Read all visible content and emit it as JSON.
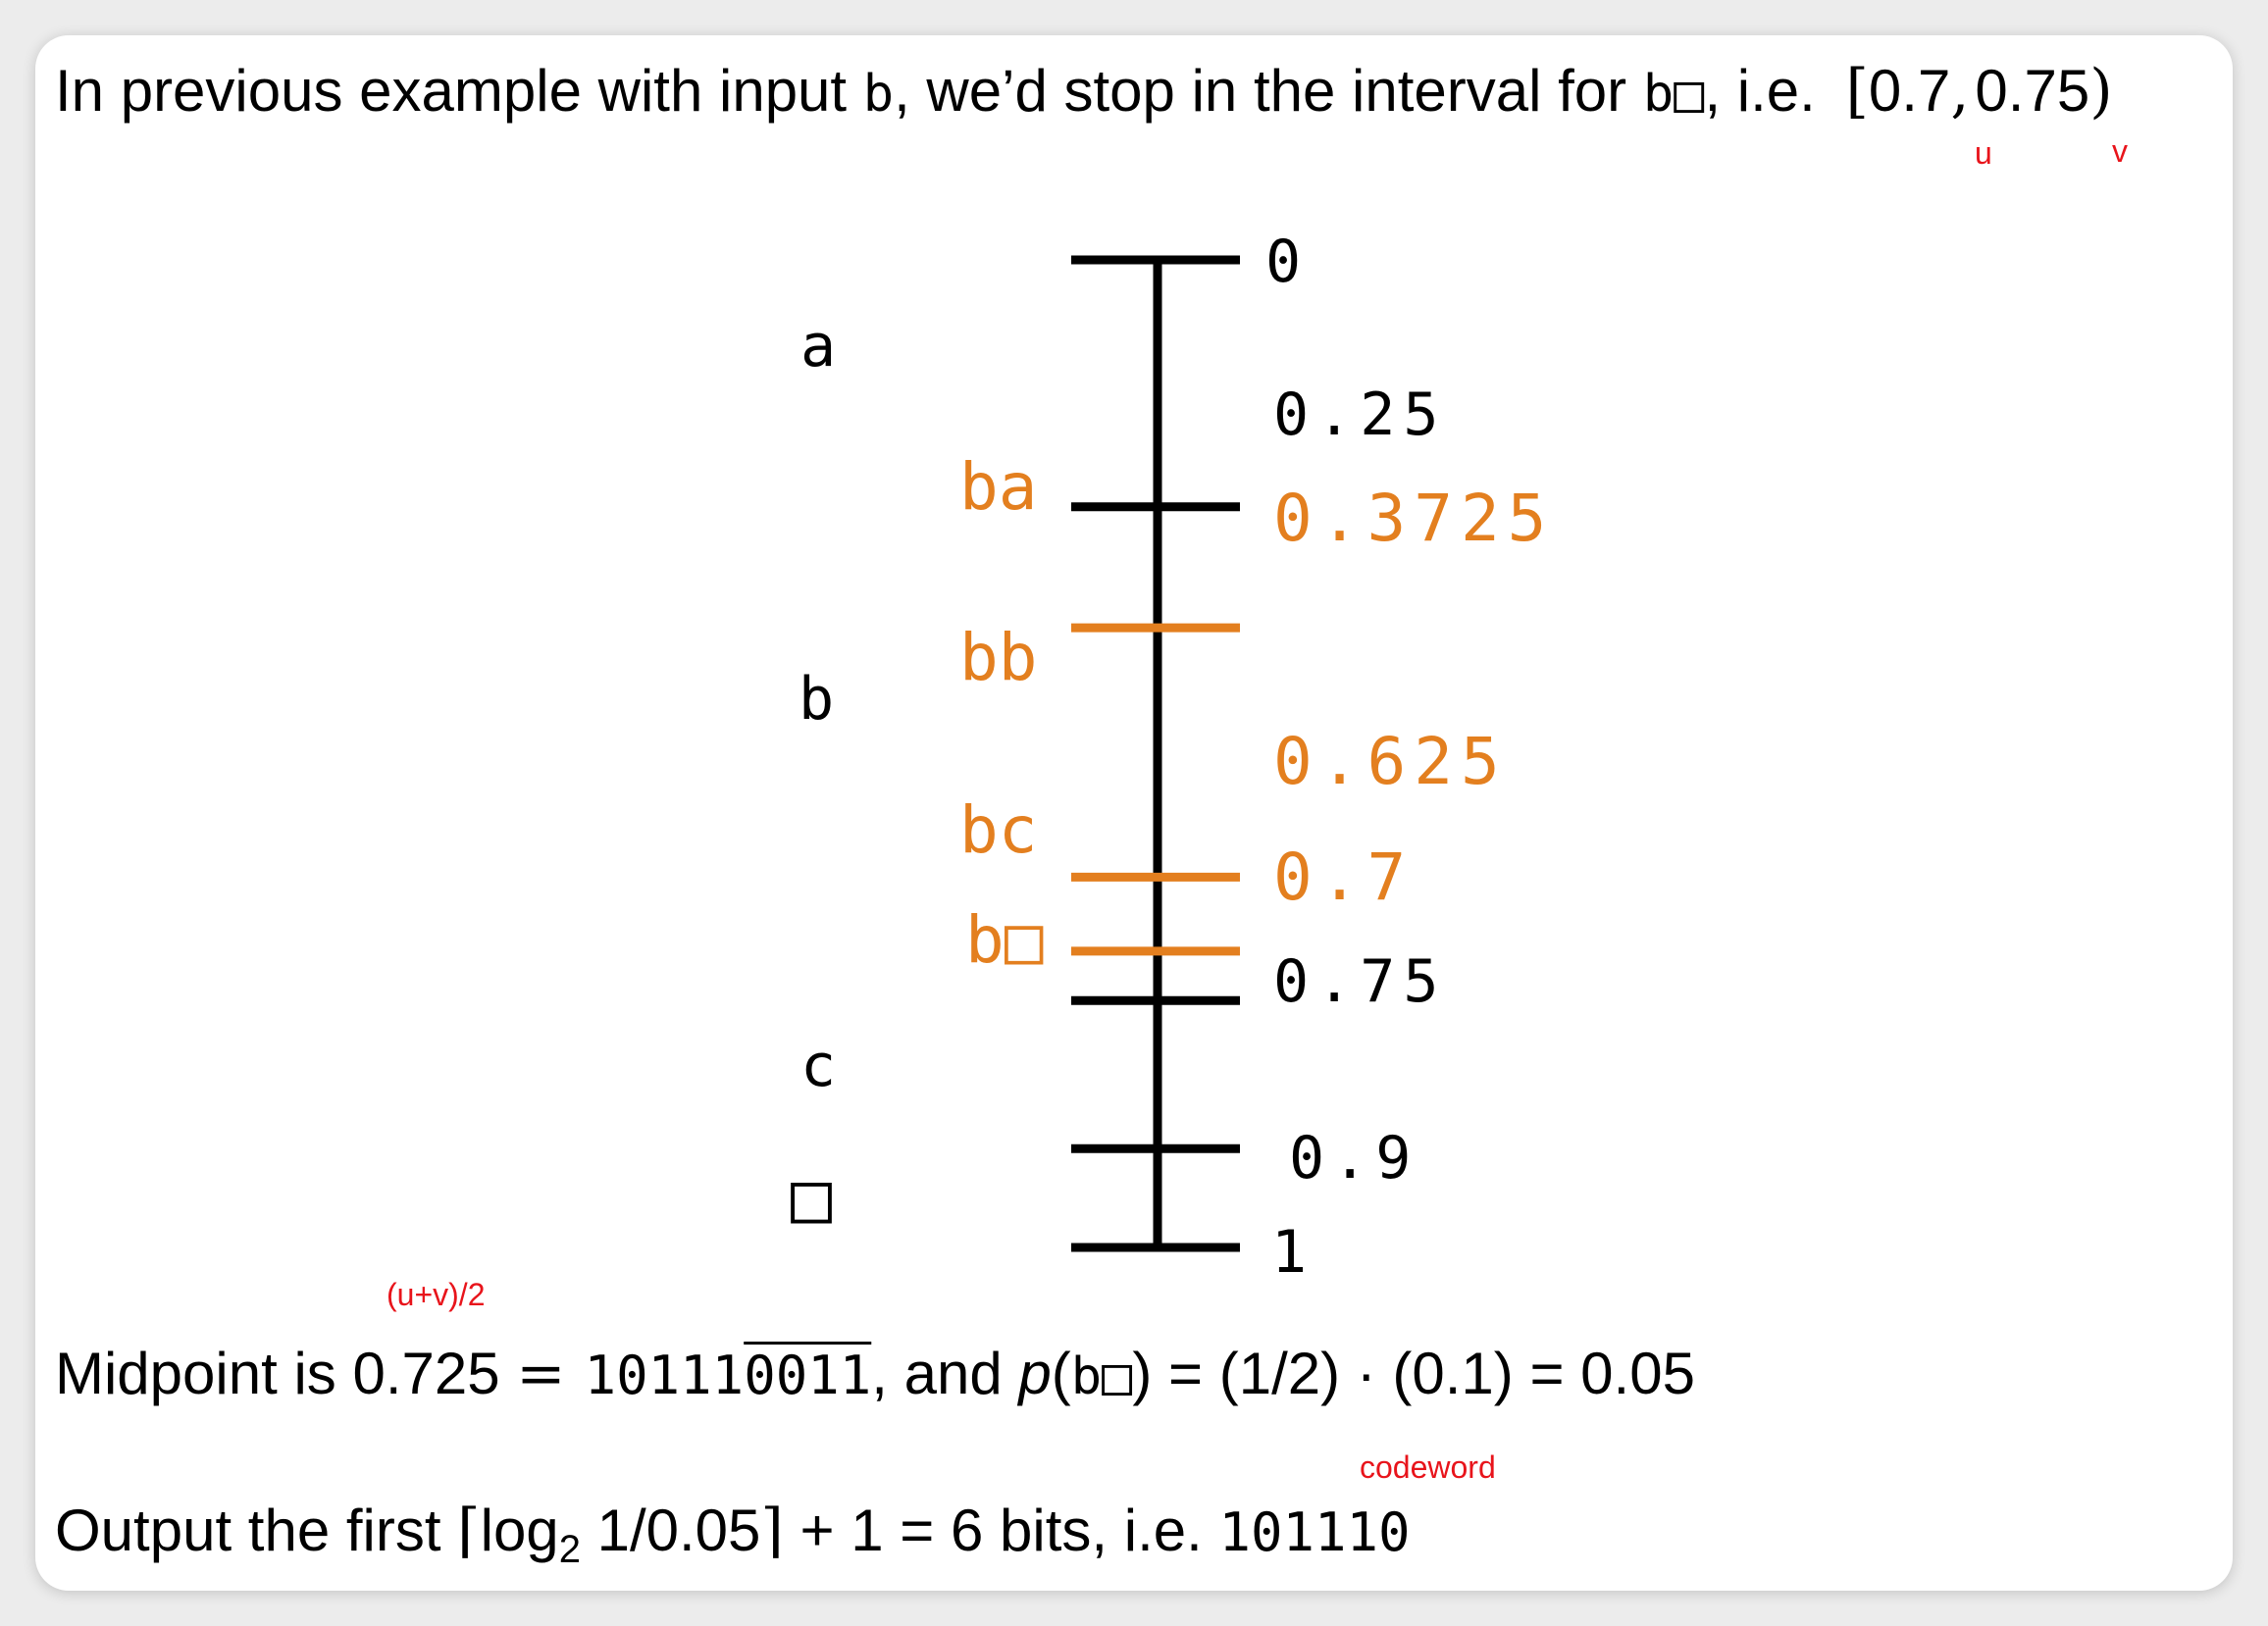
{
  "header": {
    "prefix": "In previous example with input ",
    "input_symbol": "b",
    "mid": ", we’d stop in the interval for ",
    "interval_symbol": "b□",
    "suffix": ", i.e. ",
    "interval_open": "[",
    "u_value": "0.7",
    "comma": ",",
    "v_value": "0.75",
    "interval_close": ")",
    "u_annotation": "u",
    "v_annotation": "v"
  },
  "diagram": {
    "ticks": [
      {
        "label": "0",
        "color": "#000000"
      },
      {
        "label": "0.25",
        "color": "#000000"
      },
      {
        "label": "0.3725",
        "color": "#e37f1f"
      },
      {
        "label": "0.625",
        "color": "#e37f1f"
      },
      {
        "label": "0.7",
        "color": "#e37f1f"
      },
      {
        "label": "0.75",
        "color": "#000000"
      },
      {
        "label": "0.9",
        "color": "#000000"
      },
      {
        "label": "1",
        "color": "#000000"
      }
    ],
    "outer_symbols": [
      "a",
      "b",
      "c",
      "□"
    ],
    "inner_symbols": [
      "ba",
      "bb",
      "bc",
      "b□"
    ],
    "colors": {
      "black": "#000000",
      "orange": "#e37f1f",
      "red": "#e8141b"
    }
  },
  "midpoint": {
    "annotation": "(u+v)/2",
    "prefix": "Midpoint is 0.725 ",
    "eq1": "= ",
    "binary_plain": "10111",
    "binary_repeat": "0011",
    "mid": ", and ",
    "p": "p",
    "p_open": "(",
    "p_symbol": "b□",
    "p_close": ")",
    "rest": " = (1/2) · (0.1) = 0.05"
  },
  "output": {
    "annotation": "codeword",
    "prefix": "Output the first ",
    "ceil_open": "⌈",
    "log": "log",
    "log_base": "2",
    "log_arg": " 1/0.05",
    "ceil_close": "⌉",
    "rest": " + 1 = 6 bits, i.e. ",
    "codeword": "101110"
  }
}
